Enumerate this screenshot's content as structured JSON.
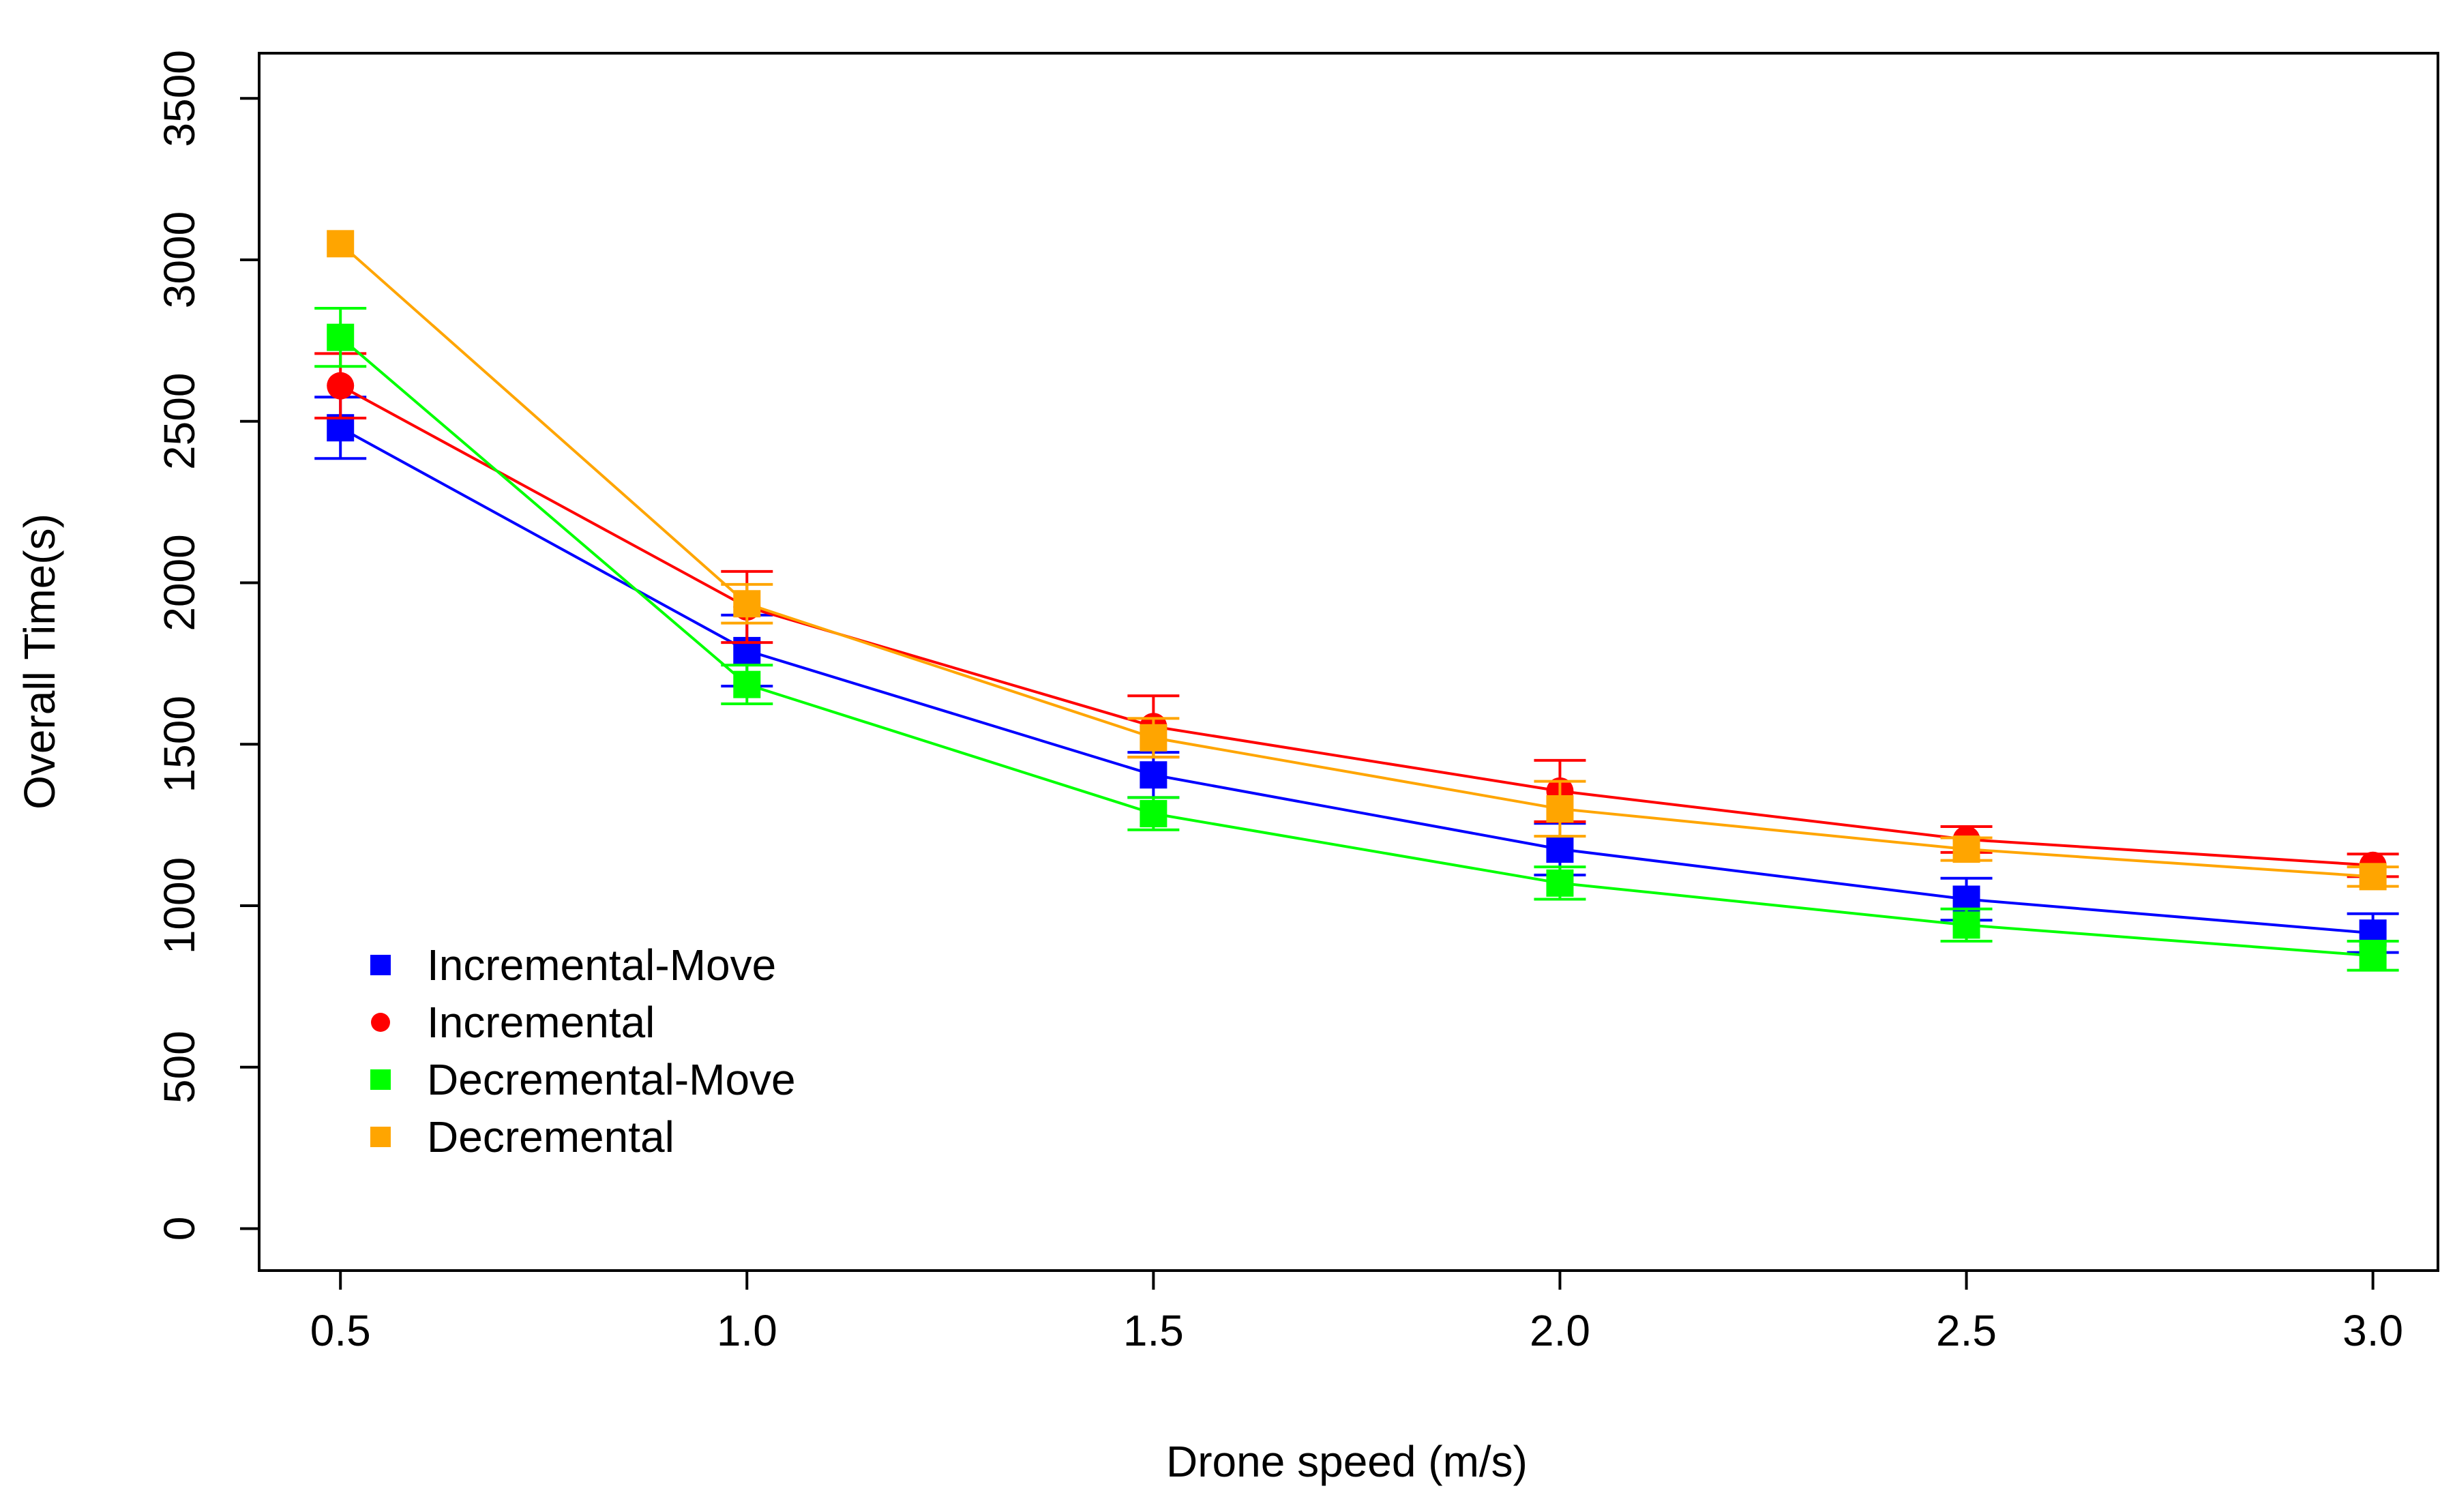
{
  "chart_data": {
    "type": "line",
    "title": "",
    "xlabel": "Drone speed (m/s)",
    "ylabel": "Overall Time(s)",
    "x": [
      0.5,
      1.0,
      1.5,
      2.0,
      2.5,
      3.0
    ],
    "x_tick_labels": [
      "0.5",
      "1.0",
      "1.5",
      "2.0",
      "2.5",
      "3.0"
    ],
    "y_ticks": [
      0,
      500,
      1000,
      1500,
      2000,
      2500,
      3000,
      3500
    ],
    "y_tick_labels": [
      "0",
      "500",
      "1000",
      "1500",
      "2000",
      "2500",
      "3000",
      "3500"
    ],
    "xlim": [
      0.4,
      3.08
    ],
    "ylim": [
      -130,
      3640
    ],
    "grid": false,
    "legend_position": "bottom-left",
    "series": [
      {
        "name": "Incremental-Move",
        "color": "#0000ff",
        "marker": "square",
        "values": [
          2480,
          1790,
          1405,
          1175,
          1020,
          915
        ],
        "errors": [
          95,
          110,
          70,
          80,
          65,
          60
        ]
      },
      {
        "name": "Incremental",
        "color": "#ff0000",
        "marker": "circle",
        "values": [
          2610,
          1925,
          1555,
          1355,
          1205,
          1125
        ],
        "errors": [
          100,
          110,
          95,
          95,
          40,
          35
        ]
      },
      {
        "name": "Decremental-Move",
        "color": "#00ff00",
        "marker": "square",
        "values": [
          2760,
          1685,
          1285,
          1070,
          940,
          845
        ],
        "errors": [
          90,
          60,
          50,
          50,
          50,
          45
        ]
      },
      {
        "name": "Decremental",
        "color": "#ffa500",
        "marker": "square",
        "values": [
          3050,
          1935,
          1520,
          1300,
          1175,
          1090
        ],
        "errors": [
          0,
          60,
          60,
          85,
          35,
          30
        ]
      }
    ]
  }
}
